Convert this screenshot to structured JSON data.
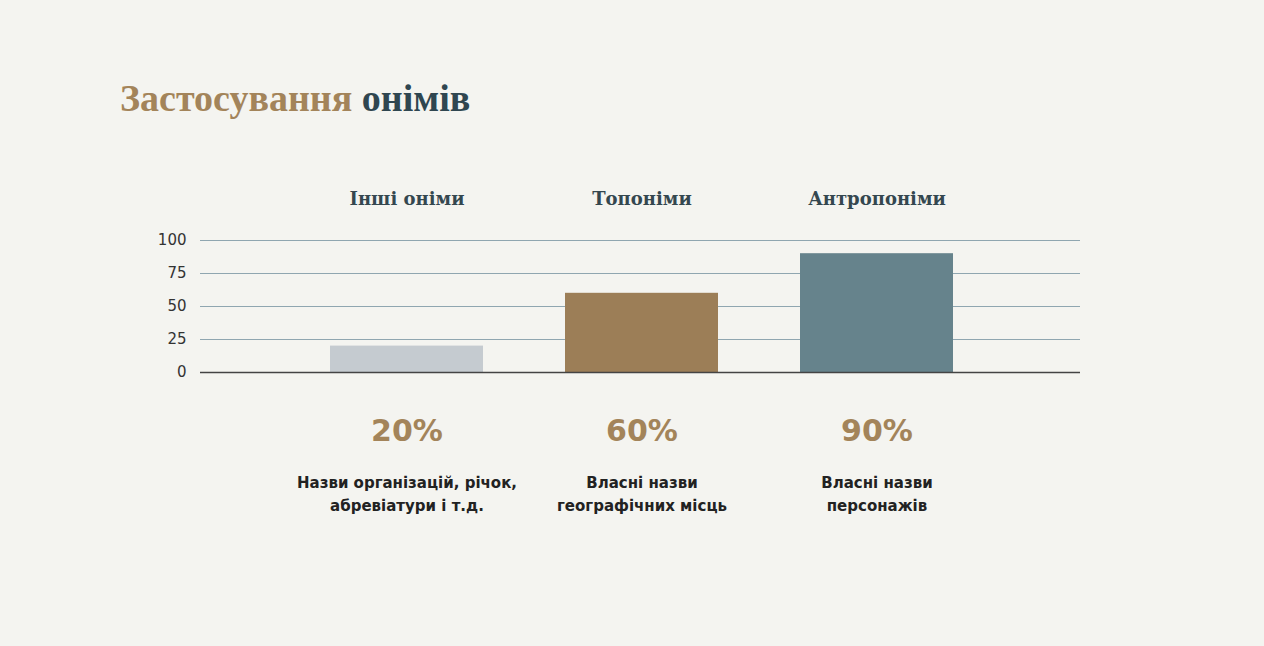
{
  "chart_data": {
    "type": "bar",
    "title": "Застосування онімів",
    "categories": [
      "Інші оніми",
      "Топоніми",
      "Антропоніми"
    ],
    "values": [
      20,
      60,
      90
    ],
    "value_labels": [
      "20%",
      "60%",
      "90%"
    ],
    "annotations": [
      "Назви організацій, річок, абревіатури і т.д.",
      "Власні назви географічних місць",
      "Власні назви персонажів"
    ],
    "colors": [
      "#c5cbd0",
      "#9c7e57",
      "#66838c"
    ],
    "ylim": [
      0,
      100
    ],
    "yticks": [
      0,
      25,
      50,
      75,
      100
    ],
    "grid": true,
    "data_labels": true
  }
}
